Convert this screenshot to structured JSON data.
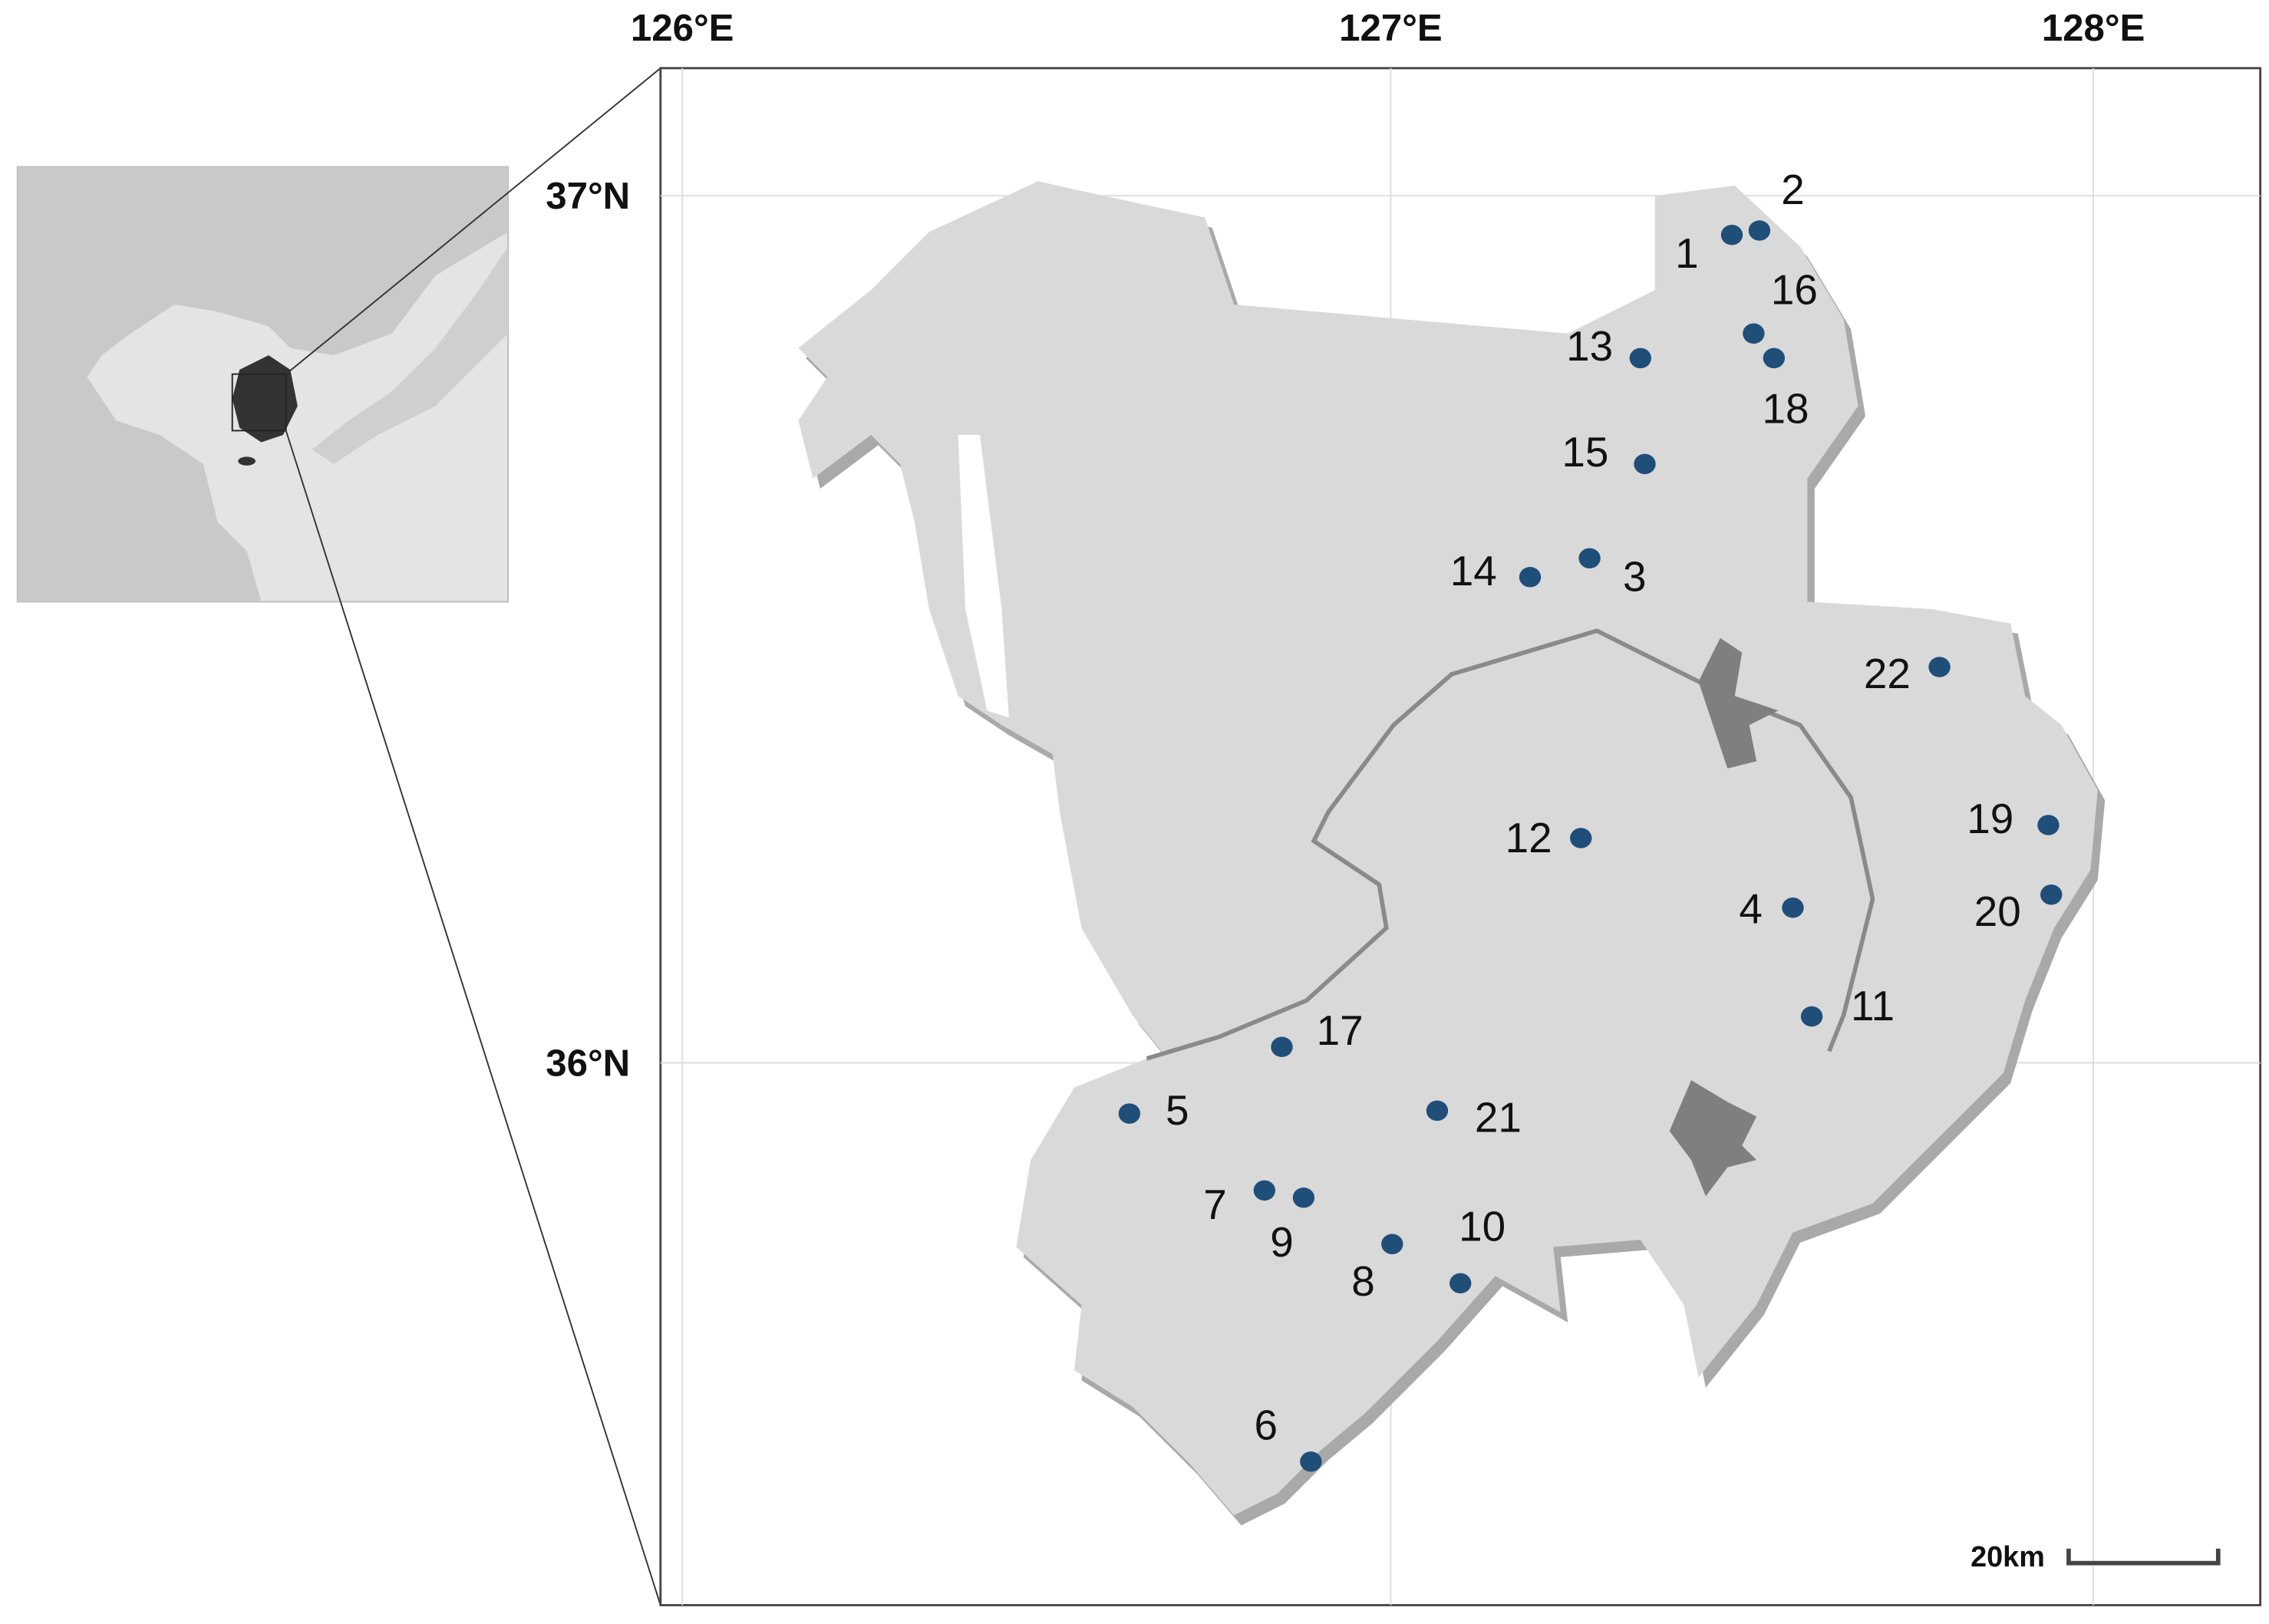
{
  "graticule": {
    "longitudes": [
      "126°E",
      "127°E",
      "128°E"
    ],
    "latitudes": [
      "37°N",
      "36°N"
    ]
  },
  "sites": [
    "1",
    "2",
    "3",
    "4",
    "5",
    "6",
    "7",
    "8",
    "9",
    "10",
    "11",
    "12",
    "13",
    "14",
    "15",
    "16",
    "17",
    "18",
    "19",
    "20",
    "21",
    "22"
  ],
  "scale_bar": "20km"
}
